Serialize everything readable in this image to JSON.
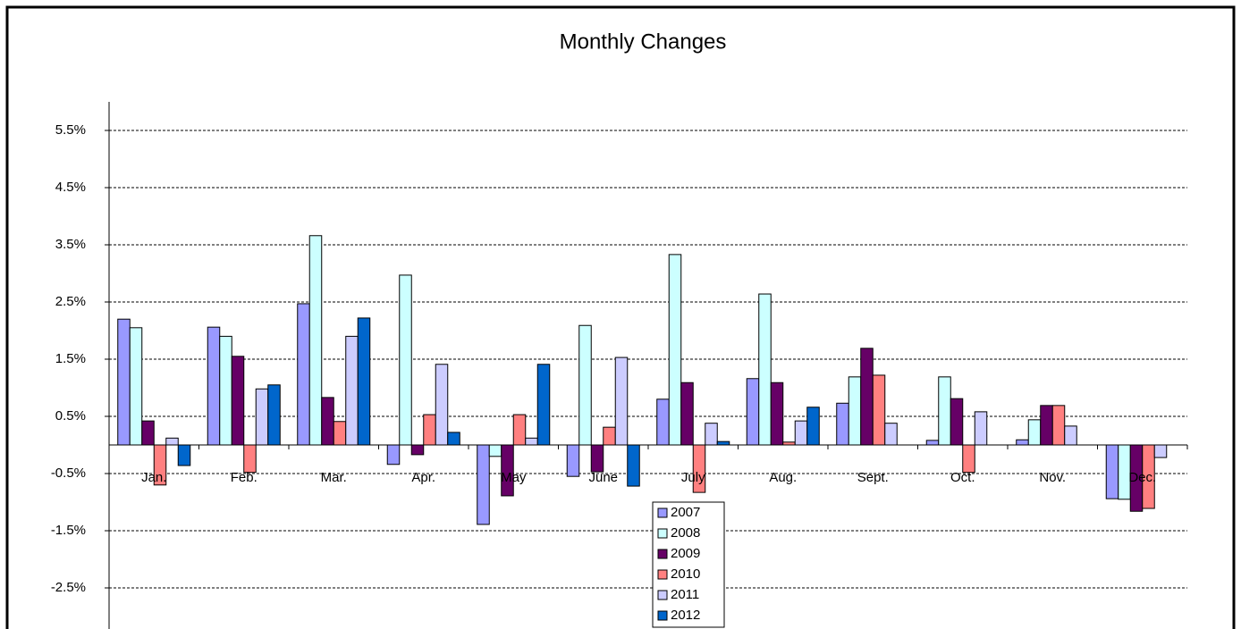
{
  "chart_data": {
    "type": "bar",
    "title": "Monthly Changes",
    "categories": [
      "Jan.",
      "Feb.",
      "Mar.",
      "Apr.",
      "May",
      "June",
      "July",
      "Aug.",
      "Sept.",
      "Oct.",
      "Nov.",
      "Dec."
    ],
    "series": [
      {
        "name": "2007",
        "color": "#9999ff",
        "values": [
          2.2,
          2.06,
          2.47,
          -0.34,
          -1.39,
          -0.55,
          0.8,
          1.16,
          0.73,
          0.08,
          0.09,
          -0.94
        ]
      },
      {
        "name": "2008",
        "color": "#ccffff",
        "values": [
          2.05,
          1.9,
          3.66,
          2.97,
          -0.2,
          2.09,
          3.33,
          2.64,
          1.19,
          1.19,
          0.44,
          -0.95
        ]
      },
      {
        "name": "2009",
        "color": "#660066",
        "values": [
          0.42,
          1.55,
          0.83,
          -0.17,
          -0.89,
          -0.47,
          1.09,
          1.09,
          1.69,
          0.81,
          0.69,
          -1.16
        ]
      },
      {
        "name": "2010",
        "color": "#ff8080",
        "values": [
          -0.7,
          -0.48,
          0.41,
          0.53,
          0.53,
          0.31,
          -0.83,
          0.05,
          1.22,
          -0.48,
          0.69,
          -1.11
        ]
      },
      {
        "name": "2011",
        "color": "#ccccff",
        "values": [
          0.12,
          0.98,
          1.9,
          1.41,
          0.12,
          1.53,
          0.38,
          0.42,
          0.38,
          0.58,
          0.33,
          -0.22
        ]
      },
      {
        "name": "2012",
        "color": "#0066cc",
        "values": [
          -0.36,
          1.05,
          2.22,
          0.22,
          1.41,
          -0.72,
          0.06,
          0.66,
          null,
          null,
          null,
          null
        ]
      }
    ],
    "ylim": [
      -3,
      6
    ],
    "yticks": [
      {
        "value": -2.5,
        "label": "-2.5%"
      },
      {
        "value": -1.5,
        "label": "-1.5%"
      },
      {
        "value": -0.5,
        "label": "-0.5%"
      },
      {
        "value": 0.5,
        "label": "0.5%"
      },
      {
        "value": 1.5,
        "label": "1.5%"
      },
      {
        "value": 2.5,
        "label": "2.5%"
      },
      {
        "value": 3.5,
        "label": "3.5%"
      },
      {
        "value": 4.5,
        "label": "4.5%"
      },
      {
        "value": 5.5,
        "label": "5.5%"
      }
    ],
    "grid": true
  }
}
